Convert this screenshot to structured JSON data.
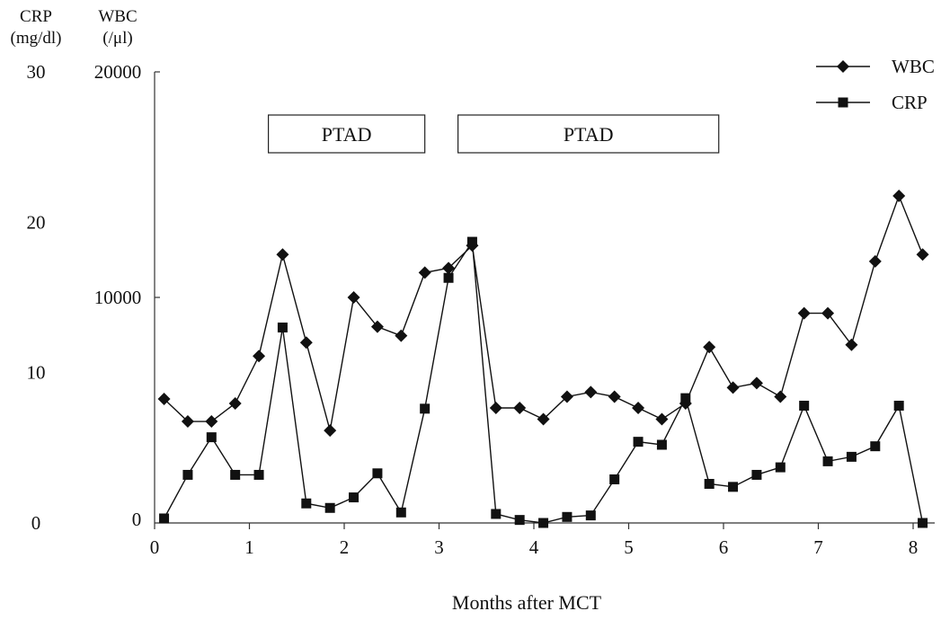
{
  "chart_data": {
    "type": "line",
    "x_axis": {
      "label": "Months after MCT",
      "range": [
        0,
        8.2
      ],
      "ticks": [
        0,
        1,
        2,
        3,
        4,
        5,
        6,
        7,
        8
      ]
    },
    "y_axes": {
      "left": {
        "label_line1": "CRP",
        "label_line2": "(mg/dl)",
        "range": [
          0,
          30
        ],
        "ticks": [
          0,
          10,
          20,
          30
        ]
      },
      "right": {
        "label_line1": "WBC",
        "label_line2": "(/μl)",
        "range": [
          0,
          20000
        ],
        "ticks": [
          10000,
          20000
        ],
        "zero_label": "0"
      }
    },
    "annotations": [
      {
        "label": "PTAD",
        "x_start": 1.2,
        "x_end": 2.85
      },
      {
        "label": "PTAD",
        "x_start": 3.2,
        "x_end": 5.95
      }
    ],
    "legend": {
      "position": "top-right"
    },
    "series": [
      {
        "name": "WBC",
        "axis": "right",
        "marker": "diamond",
        "x": [
          0.1,
          0.35,
          0.6,
          0.85,
          1.1,
          1.35,
          1.6,
          1.85,
          2.1,
          2.35,
          2.6,
          2.85,
          3.1,
          3.35,
          3.6,
          3.85,
          4.1,
          4.35,
          4.6,
          4.85,
          5.1,
          5.35,
          5.6,
          5.85,
          6.1,
          6.35,
          6.6,
          6.85,
          7.1,
          7.35,
          7.6,
          7.85,
          8.1
        ],
        "values": [
          5500,
          4500,
          4500,
          5300,
          7400,
          11900,
          8000,
          4100,
          10000,
          8700,
          8300,
          11100,
          11300,
          12300,
          5100,
          5100,
          4600,
          5600,
          5800,
          5600,
          5100,
          4600,
          5300,
          7800,
          6000,
          6200,
          5600,
          9300,
          9300,
          7900,
          11600,
          14500,
          11900
        ]
      },
      {
        "name": "CRP",
        "axis": "left",
        "marker": "square",
        "x": [
          0.1,
          0.35,
          0.6,
          0.85,
          1.1,
          1.35,
          1.6,
          1.85,
          2.1,
          2.35,
          2.6,
          2.85,
          3.1,
          3.35,
          3.6,
          3.85,
          4.1,
          4.35,
          4.6,
          4.85,
          5.1,
          5.35,
          5.6,
          5.85,
          6.1,
          6.35,
          6.6,
          6.85,
          7.1,
          7.35,
          7.6,
          7.85,
          8.1
        ],
        "values": [
          0.3,
          3.2,
          5.7,
          3.2,
          3.2,
          13.0,
          1.3,
          1.0,
          1.7,
          3.3,
          0.7,
          7.6,
          16.3,
          18.7,
          0.6,
          0.2,
          0.0,
          0.4,
          0.5,
          2.9,
          5.4,
          5.2,
          8.3,
          2.6,
          2.4,
          3.2,
          3.7,
          7.8,
          4.1,
          4.4,
          5.1,
          7.8,
          0.0
        ]
      }
    ]
  }
}
